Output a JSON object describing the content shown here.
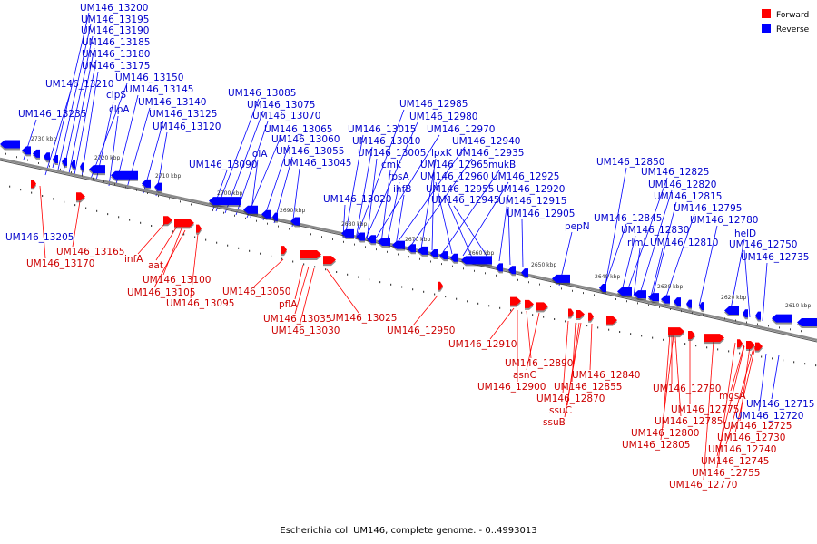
{
  "colors": {
    "forward": "#ff0000",
    "reverse": "#0000ff",
    "backbone": "#8a8a8a"
  },
  "legend": [
    {
      "label": "Forward",
      "color": "#ff0000"
    },
    {
      "label": "Reverse",
      "color": "#0000ff"
    }
  ],
  "caption": "Escherichia coli UM146, complete genome. - 0..4993013",
  "ticks": [
    "2730 kbp",
    "2720 kbp",
    "2710 kbp",
    "2700 kbp",
    "2690 kbp",
    "2680 kbp",
    "2670 kbp",
    "2660 kbp",
    "2650 kbp",
    "2640 kbp",
    "2630 kbp",
    "2620 kbp",
    "2610 kbp"
  ],
  "reverse_labels": [
    "UM146_13200",
    "UM146_13195",
    "UM146_13190",
    "UM146_13185",
    "UM146_13180",
    "UM146_13175",
    "UM146_13150",
    "UM146_13210",
    "clpS",
    "UM146_13145",
    "UM146_13140",
    "clpA",
    "UM146_13235",
    "UM146_13125",
    "UM146_13120",
    "UM146_13085",
    "UM146_13075",
    "UM146_13070",
    "UM146_13065",
    "UM146_13060",
    "UM146_13055",
    "lolA",
    "UM146_13090",
    "UM146_13045",
    "UM146_13205",
    "UM146_12985",
    "UM146_12980",
    "UM146_12970",
    "UM146_13015",
    "UM146_13010",
    "UM146_12940",
    "UM146_13005",
    "UM146_12935",
    "cmk",
    "lpxK",
    "UM146_12965",
    "mukB",
    "rpsA",
    "UM146_12960",
    "UM146_12925",
    "ihfB",
    "UM146_12955",
    "UM146_12920",
    "UM146_13020",
    "UM146_12945",
    "UM146_12915",
    "UM146_12905",
    "UM146_12850",
    "UM146_12825",
    "UM146_12820",
    "UM146_12815",
    "UM146_12795",
    "UM146_12845",
    "UM146_12830",
    "UM146_12780",
    "rlmL",
    "UM146_12810",
    "helD",
    "UM146_12750",
    "UM146_12735",
    "pepN",
    "UM146_12715",
    "UM146_12720"
  ],
  "forward_labels": [
    "UM146_13165",
    "UM146_13170",
    "infA",
    "aat",
    "UM146_13100",
    "UM146_13105",
    "UM146_13095",
    "UM146_13050",
    "pflA",
    "UM146_13025",
    "UM146_13035",
    "UM146_13030",
    "UM146_12950",
    "UM146_12910",
    "UM146_12890",
    "asnC",
    "UM146_12900",
    "UM146_12840",
    "UM146_12855",
    "UM146_12870",
    "ssuC",
    "ssuB",
    "UM146_12790",
    "mgsA",
    "UM146_12775",
    "UM146_12785",
    "UM146_12725",
    "UM146_12800",
    "UM146_12730",
    "UM146_12805",
    "UM146_12740",
    "UM146_12745",
    "UM146_12755",
    "UM146_12770"
  ]
}
